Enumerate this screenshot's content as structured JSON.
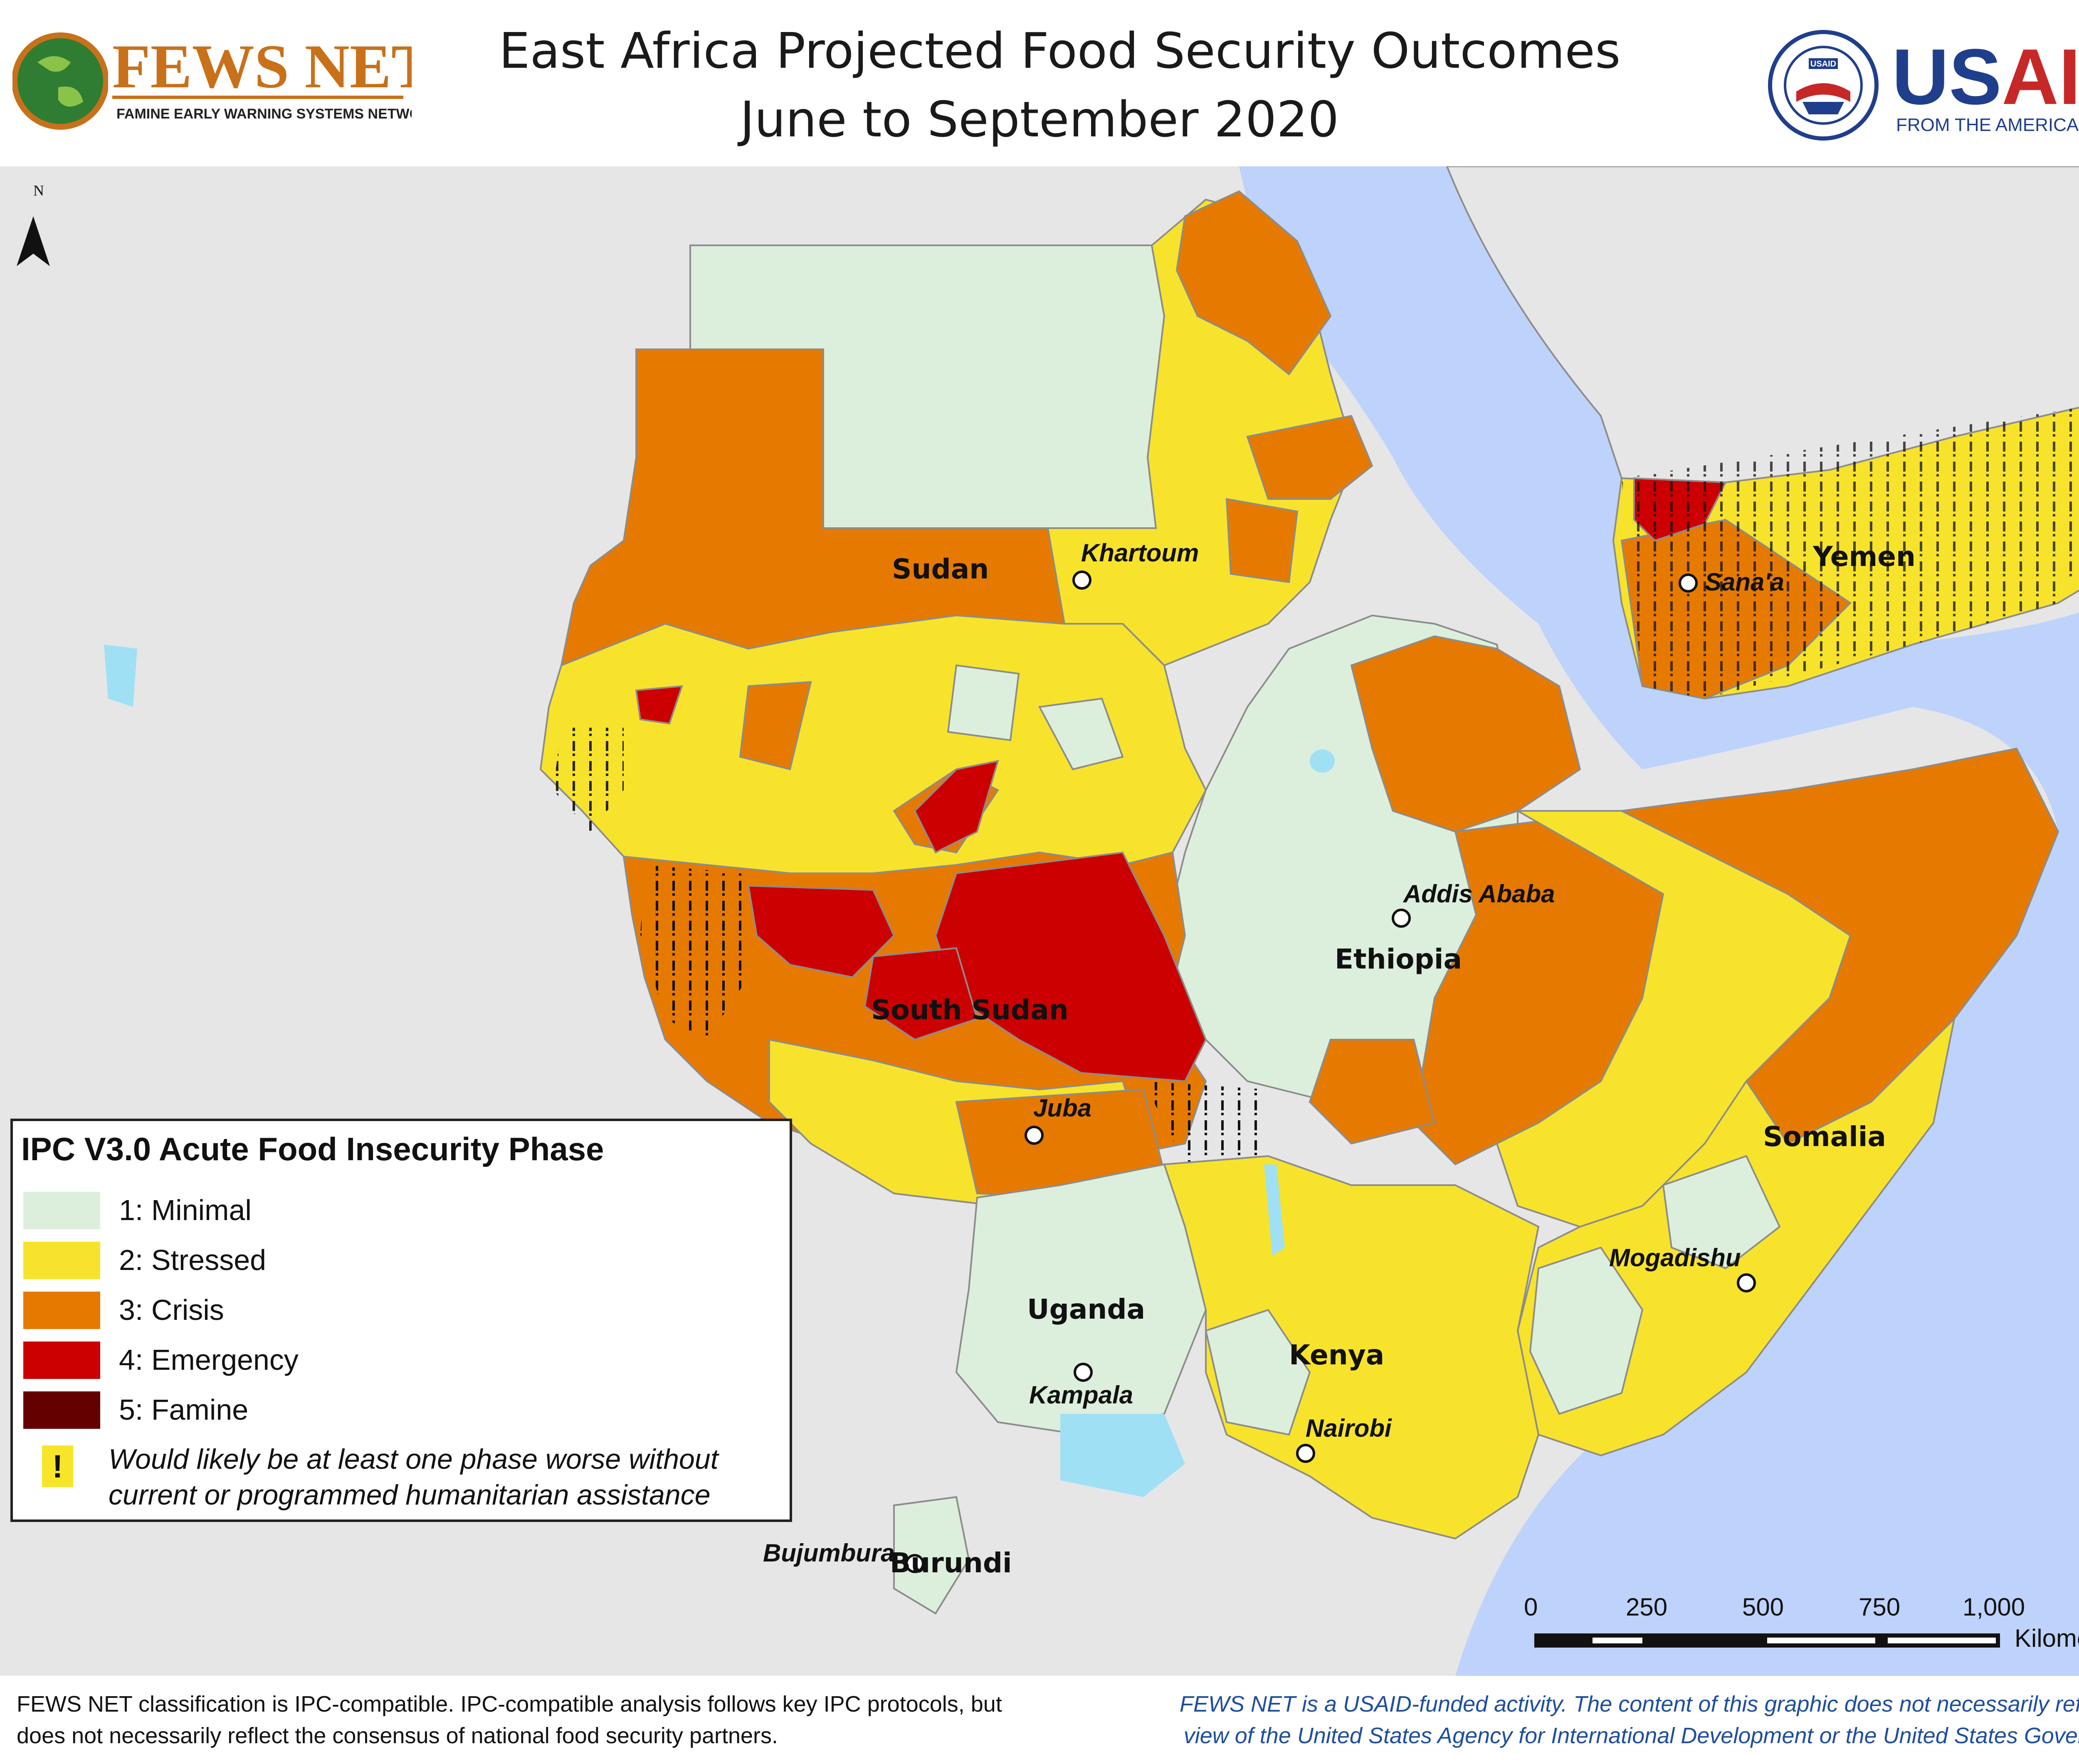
{
  "header": {
    "title_line1": "East Africa Projected Food Security Outcomes",
    "title_line2": "June to September 2020",
    "fews_logo_text": "FEWS NET",
    "fews_logo_subtitle": "FAMINE EARLY WARNING SYSTEMS NETWORK",
    "usaid_logo_text": "USAID",
    "usaid_logo_subtitle": "FROM THE AMERICAN PEOPLE",
    "usaid_seal_text": "UNITED STATES AGENCY FOR INTERNATIONAL DEVELOPMENT"
  },
  "map": {
    "north_arrow_label": "N",
    "countries": [
      "Sudan",
      "South Sudan",
      "Ethiopia",
      "Somalia",
      "Kenya",
      "Uganda",
      "Burundi",
      "Yemen"
    ],
    "cities": [
      "Khartoum",
      "Sana'a",
      "Addis Ababa",
      "Juba",
      "Mogadishu",
      "Kampala",
      "Nairobi",
      "Bujumbura"
    ],
    "colors": {
      "minimal": "#dcefdc",
      "stressed": "#f7e32b",
      "crisis": "#e67a00",
      "emergency": "#cc0000",
      "famine": "#640000",
      "water": "#bdd3fb",
      "lake": "#9fe0f5",
      "background": "#e6e6e6",
      "border": "#8c8c8c"
    }
  },
  "legend": {
    "title": "IPC V3.0 Acute Food Insecurity Phase",
    "items": [
      {
        "label": "1: Minimal",
        "color": "#dcefdc"
      },
      {
        "label": "2: Stressed",
        "color": "#f7e32b"
      },
      {
        "label": "3: Crisis",
        "color": "#e67a00"
      },
      {
        "label": "4: Emergency",
        "color": "#cc0000"
      },
      {
        "label": "5: Famine",
        "color": "#640000"
      }
    ],
    "assistance_icon": "!",
    "assistance_note": "Would likely be at least one phase worse without current or programmed humanitarian assistance"
  },
  "scale_bar": {
    "ticks": [
      "0",
      "250",
      "500",
      "750",
      "1,000"
    ],
    "unit": "Kilometers"
  },
  "footer": {
    "left": "FEWS NET classification is IPC-compatible. IPC-compatible analysis follows key IPC protocols, but does not necessarily reflect the consensus of national food security partners.",
    "right": "FEWS NET is a USAID-funded activity. The content of this graphic does not necessarily reflect the view of the United States Agency for International Development or the United States Government."
  }
}
